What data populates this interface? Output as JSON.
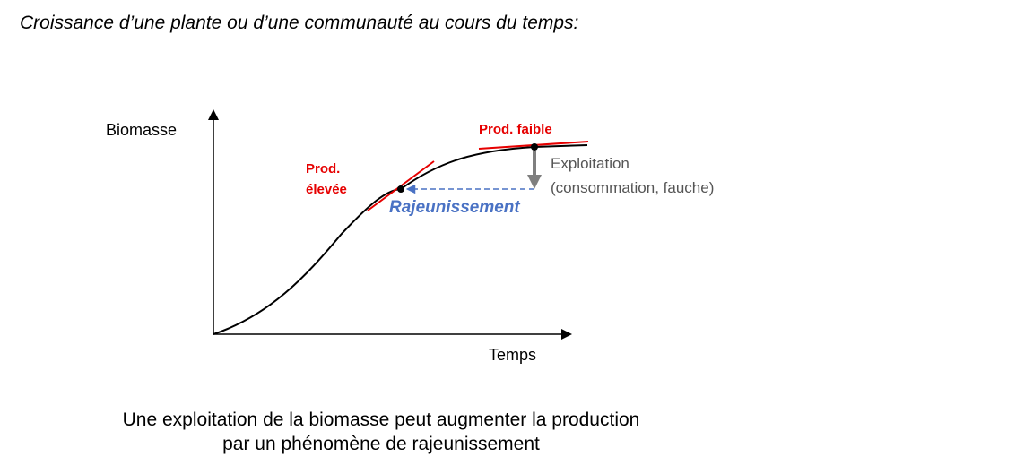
{
  "title": "Croissance d’une plante ou d’une communauté au cours du temps:",
  "diagram": {
    "y_axis_label": "Biomasse",
    "x_axis_label": "Temps",
    "high_prod_label_line1": "Prod.",
    "high_prod_label_line2": "élevée",
    "low_prod_label": "Prod. faible",
    "exploitation_label_line1": "Exploitation",
    "exploitation_label_line2": "(consommation, fauche)",
    "rejuvenation_label": "Rajeunissement",
    "colors": {
      "tangent": "#e60000",
      "exploitation_arrow": "#7f7f7f",
      "rejuvenation": "#4a72c4"
    }
  },
  "caption": {
    "line1": "Une exploitation de la biomasse peut augmenter la production",
    "line2": "par un phénomène de rajeunissement"
  }
}
